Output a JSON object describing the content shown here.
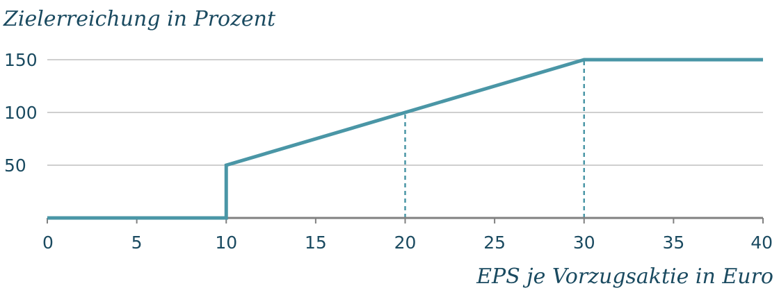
{
  "chart_data": {
    "type": "line",
    "title": "",
    "ylabel": "Zielerreichung in Prozent",
    "xlabel": "EPS je Vorzugsaktie in Euro",
    "xlim": [
      0,
      40
    ],
    "ylim": [
      0,
      150
    ],
    "x_ticks": [
      0,
      5,
      10,
      15,
      20,
      25,
      30,
      35,
      40
    ],
    "x_tick_labels": [
      "0",
      "5",
      "10",
      "15",
      "20",
      "25",
      "30",
      "35",
      "40"
    ],
    "y_ticks": [
      50,
      100,
      150
    ],
    "y_tick_labels": [
      "50",
      "100",
      "150"
    ],
    "grid": "horizontal",
    "legend": "none",
    "series": [
      {
        "x": [
          0,
          10,
          10,
          20,
          30,
          40
        ],
        "y": [
          0,
          0,
          50,
          100,
          150,
          150
        ]
      }
    ],
    "reference_lines": [
      {
        "x": 20,
        "y_from": 0,
        "y_to": 100,
        "style": "dashed"
      },
      {
        "x": 30,
        "y_from": 0,
        "y_to": 150,
        "style": "dashed"
      }
    ],
    "colors": {
      "line": "#4a96a6",
      "axis": "#808080",
      "grid": "#bfbfbf",
      "text": "#1a4a60"
    }
  }
}
